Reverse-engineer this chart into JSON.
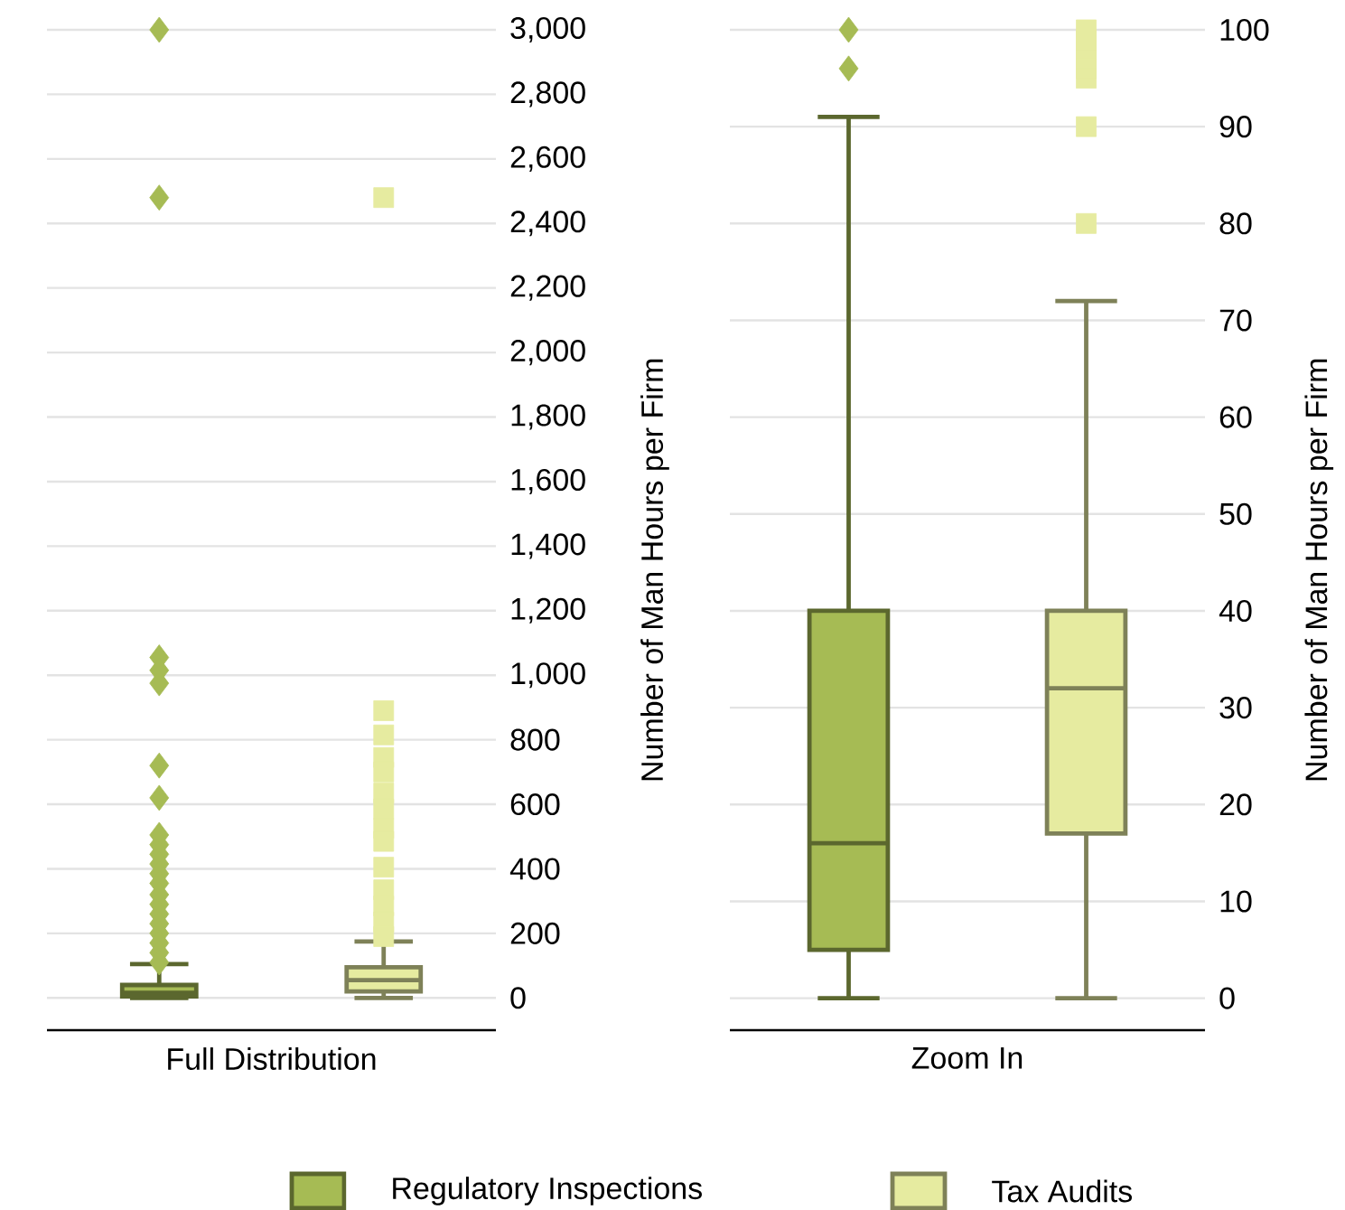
{
  "chart_data": [
    {
      "type": "box",
      "xlabel": "Full Distribution",
      "ylabel": "Number of Man Hours per Firm",
      "categories": [
        null,
        null
      ],
      "ylim": [
        -100,
        3000
      ],
      "yticks": [
        0,
        200,
        400,
        600,
        800,
        {
          "value": 1000,
          "label": "1,000"
        },
        {
          "value": 1200,
          "label": "1,200"
        },
        {
          "value": 1400,
          "label": "1,400"
        },
        {
          "value": 1600,
          "label": "1,600"
        },
        {
          "value": 1800,
          "label": "1,800"
        },
        {
          "value": 2000,
          "label": "2,000"
        },
        {
          "value": 2200,
          "label": "2,200"
        },
        {
          "value": 2400,
          "label": "2,400"
        },
        {
          "value": 2600,
          "label": "2,600"
        },
        {
          "value": 2800,
          "label": "2,800"
        },
        {
          "value": 3000,
          "label": "3,000"
        }
      ],
      "grid": "y",
      "legend": "bottom",
      "series": [
        {
          "name": "Regulatory Inspections",
          "color": "#a6bb54",
          "marker": "diamond",
          "boxes": [
            {
              "low": 0,
              "q1": 5,
              "median": 16,
              "q3": 40,
              "high": 105,
              "outliers": [
                3000,
                2480,
                1055,
                1015,
                975,
                720,
                620,
                505,
                475,
                445,
                415,
                385,
                355,
                320,
                290,
                260,
                230,
                200,
                170,
                140,
                110
              ]
            },
            null
          ]
        },
        {
          "name": "Tax Audits",
          "color": "#e6eba0",
          "marker": "square",
          "boxes": [
            null,
            {
              "low": 0,
              "q1": 20,
              "median": 55,
              "q3": 95,
              "high": 175,
              "outliers": [
                2480,
                890,
                815,
                745,
                700,
                635,
                585,
                525,
                485,
                405,
                335,
                285,
                235,
                190
              ]
            }
          ]
        }
      ]
    },
    {
      "type": "box",
      "xlabel": "Zoom In",
      "ylabel": "Number of Man Hours per Firm",
      "categories": [
        null,
        null
      ],
      "ylim": [
        -3.3,
        100
      ],
      "yticks": [
        0,
        10,
        20,
        30,
        40,
        50,
        60,
        70,
        80,
        90,
        100
      ],
      "grid": "y",
      "series": [
        {
          "color": "#a6bb54",
          "marker": "diamond",
          "boxes": [
            {
              "low": 0,
              "q1": 5,
              "median": 16,
              "q3": 40,
              "high": 91,
              "outliers": [
                100,
                96
              ]
            },
            null
          ]
        },
        {
          "color": "#e6eba0",
          "marker": "square",
          "boxes": [
            null,
            {
              "low": 0,
              "q1": 17,
              "median": 32,
              "q3": 40,
              "high": 72,
              "outliers": [
                80,
                90,
                95,
                96,
                97,
                98,
                99,
                100
              ]
            }
          ]
        }
      ]
    }
  ]
}
